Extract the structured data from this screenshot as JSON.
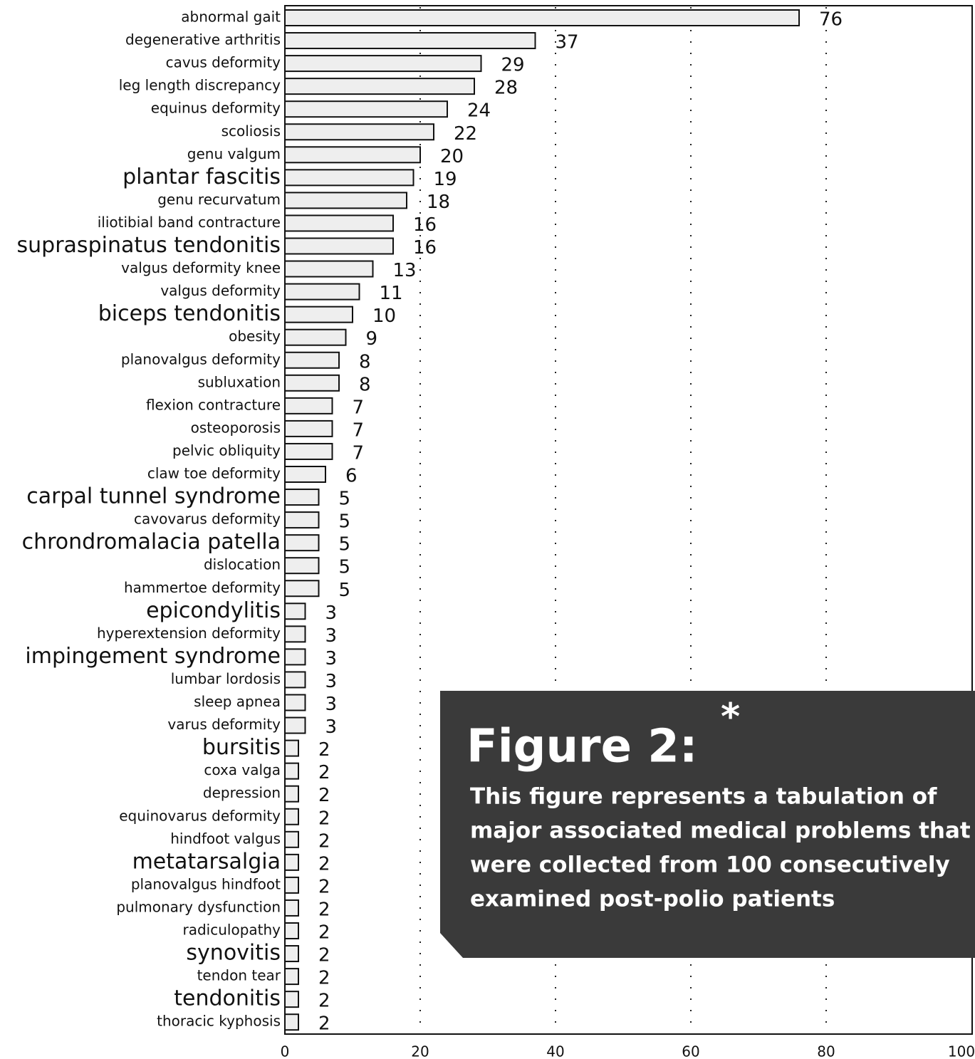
{
  "chart_data": {
    "type": "barh",
    "categories": [
      "abnormal gait",
      "degenerative arthritis",
      "cavus deformity",
      "leg length discrepancy",
      "equinus deformity",
      "scoliosis",
      "genu valgum",
      "plantar fascitis",
      "genu recurvatum",
      "iliotibial band contracture",
      "supraspinatus tendonitis",
      "valgus deformity knee",
      "valgus deformity",
      "biceps tendonitis",
      "obesity",
      "planovalgus deformity",
      "subluxation",
      "flexion contracture",
      "osteoporosis",
      "pelvic obliquity",
      "claw toe deformity",
      "carpal tunnel syndrome",
      "cavovarus deformity",
      "chrondromalacia patella",
      "dislocation",
      "hammertoe deformity",
      "epicondylitis",
      "hyperextension deformity",
      "impingement syndrome",
      "lumbar lordosis",
      "sleep apnea",
      "varus deformity",
      "bursitis",
      "coxa valga",
      "depression",
      "equinovarus deformity",
      "hindfoot valgus",
      "metatarsalgia",
      "planovalgus hindfoot",
      "pulmonary dysfunction",
      "radiculopathy",
      "synovitis",
      "tendon tear",
      "tendonitis",
      "thoracic kyphosis"
    ],
    "values": [
      76,
      37,
      29,
      28,
      24,
      22,
      20,
      19,
      18,
      16,
      16,
      13,
      11,
      10,
      9,
      8,
      8,
      7,
      7,
      7,
      6,
      5,
      5,
      5,
      5,
      5,
      3,
      3,
      3,
      3,
      3,
      3,
      2,
      2,
      2,
      2,
      2,
      2,
      2,
      2,
      2,
      2,
      2,
      2,
      2
    ],
    "color": "#eeeeee",
    "xlim": [
      0,
      100
    ],
    "xticks": [
      0,
      20,
      40,
      60,
      80,
      100
    ],
    "grid": true,
    "annotation": {
      "title": "Figure 2:",
      "mark": "*",
      "lines": [
        "This figure represents a tabulation of",
        "major associated medical problems that",
        "were collected from 100 consecutively",
        "examined post-polio patients"
      ]
    }
  }
}
